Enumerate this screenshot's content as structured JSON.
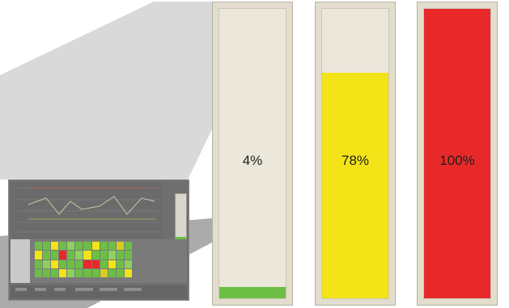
{
  "gauges": [
    {
      "label": "4%",
      "level": 0.04,
      "color": "#6cbf44"
    },
    {
      "label": "78%",
      "level": 0.78,
      "color": "#f2e417"
    },
    {
      "label": "100%",
      "level": 1.0,
      "color": "#e8292a"
    }
  ],
  "thumbnail": {
    "mini_gauge_level": 0.08,
    "grid_colors": [
      "#6cbf44",
      "#f2e417",
      "#e8292a",
      "#8fd05f",
      "#d4ce24"
    ],
    "trend_color": "#c9c9a8"
  },
  "colors": {
    "wedge_light": "#d7d7d7",
    "wedge_dark": "#9f9f9f"
  }
}
